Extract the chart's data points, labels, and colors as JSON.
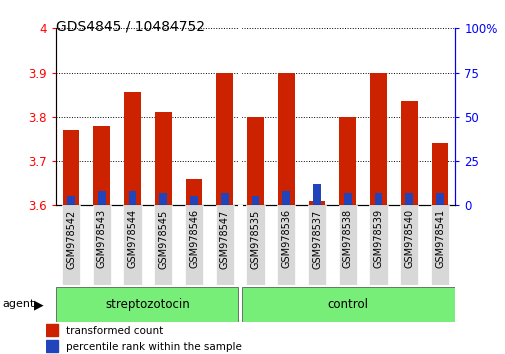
{
  "title": "GDS4845 / 10484752",
  "samples": [
    "GSM978542",
    "GSM978543",
    "GSM978544",
    "GSM978545",
    "GSM978546",
    "GSM978547",
    "GSM978535",
    "GSM978536",
    "GSM978537",
    "GSM978538",
    "GSM978539",
    "GSM978540",
    "GSM978541"
  ],
  "transformed_count": [
    3.77,
    3.78,
    3.855,
    3.81,
    3.66,
    3.9,
    3.8,
    3.9,
    3.61,
    3.8,
    3.9,
    3.835,
    3.74
  ],
  "percentile_rank": [
    5,
    8,
    8,
    7,
    5,
    7,
    5,
    8,
    12,
    7,
    7,
    7,
    7
  ],
  "ymin": 3.6,
  "ymax": 4.0,
  "y2min": 0,
  "y2max": 100,
  "bar_color": "#cc2200",
  "pct_color": "#2244bb",
  "group1_label": "streptozotocin",
  "group2_label": "control",
  "group1_count": 6,
  "group2_count": 7,
  "group_label_prefix": "agent",
  "legend_red": "transformed count",
  "legend_blue": "percentile rank within the sample",
  "bg_sample_box": "#d8d8d8",
  "bg_group": "#77ee77",
  "bar_width": 0.55,
  "fig_bg": "#ffffff"
}
